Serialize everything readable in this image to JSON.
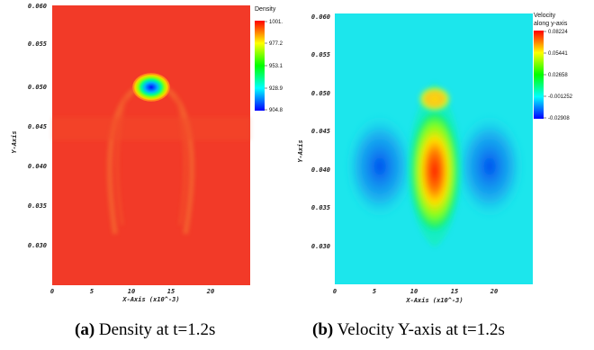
{
  "chart_data": [
    {
      "type": "heatmap",
      "quantity": "Density",
      "xlabel": "X-Axis (x10^-3)",
      "ylabel": "Y-Axis",
      "x_ticks": [
        "0",
        "5",
        "10",
        "15",
        "20"
      ],
      "y_ticks": [
        "0.060",
        "0.055",
        "0.050",
        "0.045",
        "0.040",
        "0.035",
        "0.030"
      ],
      "xlim": [
        0,
        25
      ],
      "ylim": [
        0.0255,
        0.0605
      ],
      "legend": {
        "title": "Density",
        "ticks": [
          "1001.",
          "977.2",
          "953.1",
          "928.9",
          "904.8"
        ],
        "range": [
          904.8,
          1001.0
        ],
        "position": "top-right"
      },
      "features": {
        "background_value": 1001.0,
        "bubble_center": [
          12.5,
          0.0497
        ],
        "bubble_min_value": 904.8
      },
      "caption": {
        "label": "(a)",
        "text": "Density at t=1.2s"
      }
    },
    {
      "type": "heatmap",
      "quantity": "Velocity along y-axis",
      "xlabel": "X-Axis (x10^-3)",
      "ylabel": "Y-Axis",
      "x_ticks": [
        "0",
        "5",
        "10",
        "15",
        "20"
      ],
      "y_ticks": [
        "0.060",
        "0.055",
        "0.050",
        "0.045",
        "0.040",
        "0.035",
        "0.030"
      ],
      "xlim": [
        0,
        25
      ],
      "ylim": [
        0.0255,
        0.0605
      ],
      "legend": {
        "title_lines": [
          "Velocity",
          "along y-axis"
        ],
        "ticks": [
          "0.08224",
          "0.05441",
          "0.02658",
          "-0.001252",
          "-0.02908"
        ],
        "range": [
          -0.02908,
          0.08224
        ],
        "position": "top-right"
      },
      "features": {
        "jet_center": [
          12.5,
          0.0415
        ],
        "max_value": 0.08224,
        "min_value": -0.02908
      },
      "caption": {
        "label": "(b)",
        "text": "Velocity Y-axis at t=1.2s"
      }
    }
  ],
  "colors": {
    "scale": [
      "#ff0000",
      "#ffff00",
      "#00ff00",
      "#00ffff",
      "#0000ff"
    ],
    "density_background": "#f23a28",
    "velocity_background": "#1ce6ec"
  }
}
